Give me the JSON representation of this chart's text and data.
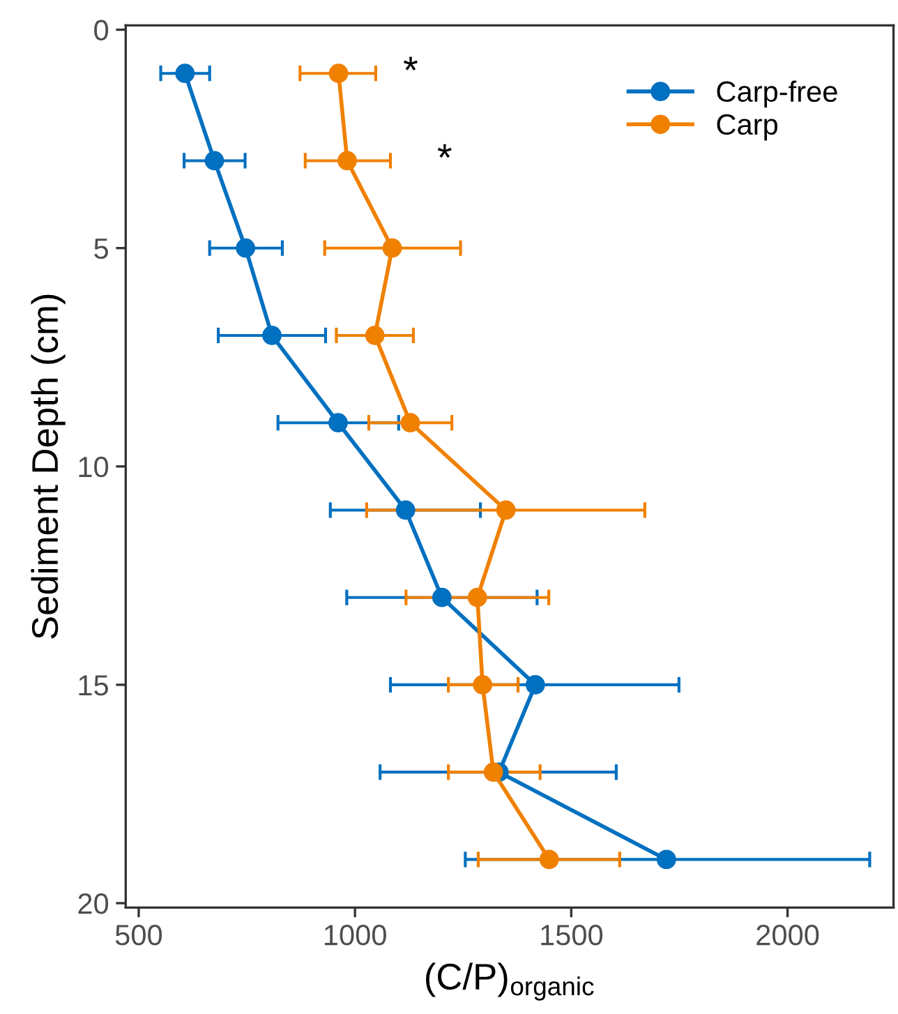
{
  "chart_data": {
    "type": "line",
    "xlabel": "(C/P)$_{organic}$",
    "ylabel": "Sediment Depth (cm)",
    "xlim": [
      470,
      2245
    ],
    "xticks": [
      500,
      1000,
      1500,
      2000
    ],
    "ylim": [
      20.1,
      -0.1
    ],
    "yticks": [
      0,
      5,
      10,
      15,
      20
    ],
    "grid": false,
    "legend": "top right",
    "marker": "circle",
    "line_style": "solid",
    "series": [
      {
        "name": "Carp-free",
        "color": "#0070c0",
        "x": [
          607,
          675,
          747,
          808,
          961,
          1117,
          1201,
          1417,
          1333,
          1720
        ],
        "values": [
          1,
          3,
          5,
          7,
          9,
          11,
          13,
          15,
          17,
          19
        ],
        "xerrors": [
          [
            551,
            664
          ],
          [
            605,
            746
          ],
          [
            664,
            832
          ],
          [
            684,
            932
          ],
          [
            822,
            1101
          ],
          [
            943,
            1290
          ],
          [
            981,
            1421
          ],
          [
            1082,
            1749
          ],
          [
            1058,
            1604
          ],
          [
            1255,
            2190
          ]
        ]
      },
      {
        "name": "Carp",
        "color": "#f08000",
        "x": [
          962,
          982,
          1086,
          1046,
          1128,
          1349,
          1283,
          1295,
          1320,
          1449
        ],
        "values": [
          1,
          3,
          5,
          7,
          9,
          11,
          13,
          15,
          17,
          19
        ],
        "xerrors": [
          [
            873,
            1048
          ],
          [
            885,
            1082
          ],
          [
            930,
            1244
          ],
          [
            957,
            1135
          ],
          [
            1032,
            1224
          ],
          [
            1027,
            1670
          ],
          [
            1118,
            1448
          ],
          [
            1216,
            1377
          ],
          [
            1216,
            1428
          ],
          [
            1285,
            1612
          ]
        ]
      }
    ],
    "annotations": [
      "*",
      "*"
    ]
  }
}
